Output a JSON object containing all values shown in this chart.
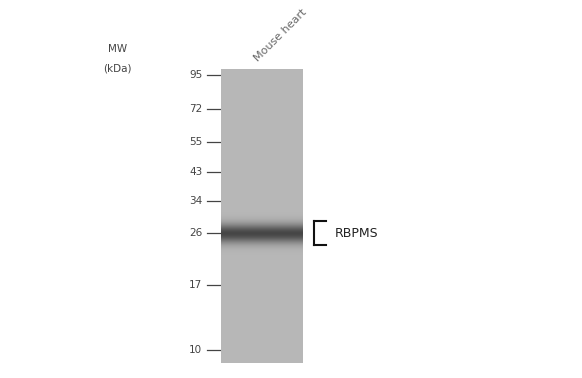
{
  "bg_color": "#ffffff",
  "mw_markers": [
    95,
    72,
    55,
    43,
    34,
    26,
    17,
    10
  ],
  "mw_label_line1": "MW",
  "mw_label_line2": "(kDa)",
  "sample_label": "Mouse heart",
  "protein_label": "RBPMS",
  "band_mw": 26,
  "lane_gray": 0.72,
  "band_dark": 0.18,
  "band_sigma_log": 0.055,
  "tick_color": "#444444",
  "text_color": "#444444",
  "bracket_color": "#111111"
}
